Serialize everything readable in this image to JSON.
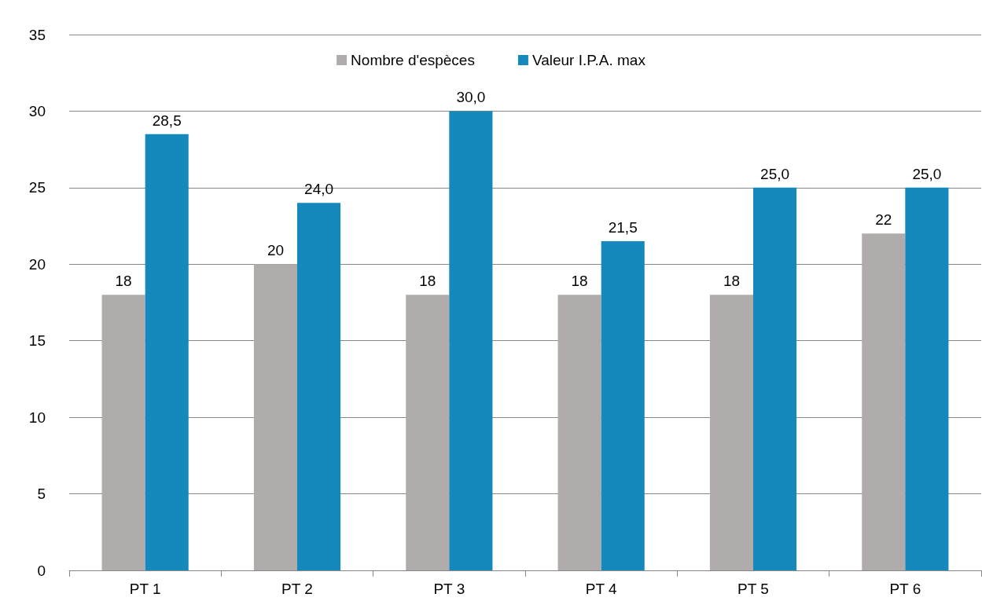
{
  "chart_data": {
    "type": "bar",
    "categories": [
      "PT 1",
      "PT 2",
      "PT 3",
      "PT 4",
      "PT 5",
      "PT 6"
    ],
    "series": [
      {
        "name": "Nombre d'espèces",
        "color": "#b0acab",
        "values": [
          18,
          20,
          18,
          18,
          18,
          22
        ],
        "value_labels": [
          "18",
          "20",
          "18",
          "18",
          "18",
          "22"
        ]
      },
      {
        "name": "Valeur I.P.A. max",
        "color": "#1589bb",
        "values": [
          28.5,
          24,
          30,
          21.5,
          25,
          25
        ],
        "value_labels": [
          "28,5",
          "24,0",
          "30,0",
          "21,5",
          "25,0",
          "25,0"
        ]
      }
    ],
    "ylim": [
      0,
      35
    ],
    "yticks": [
      0,
      5,
      10,
      15,
      20,
      25,
      30,
      35
    ],
    "grid": "y",
    "legend": "top"
  }
}
